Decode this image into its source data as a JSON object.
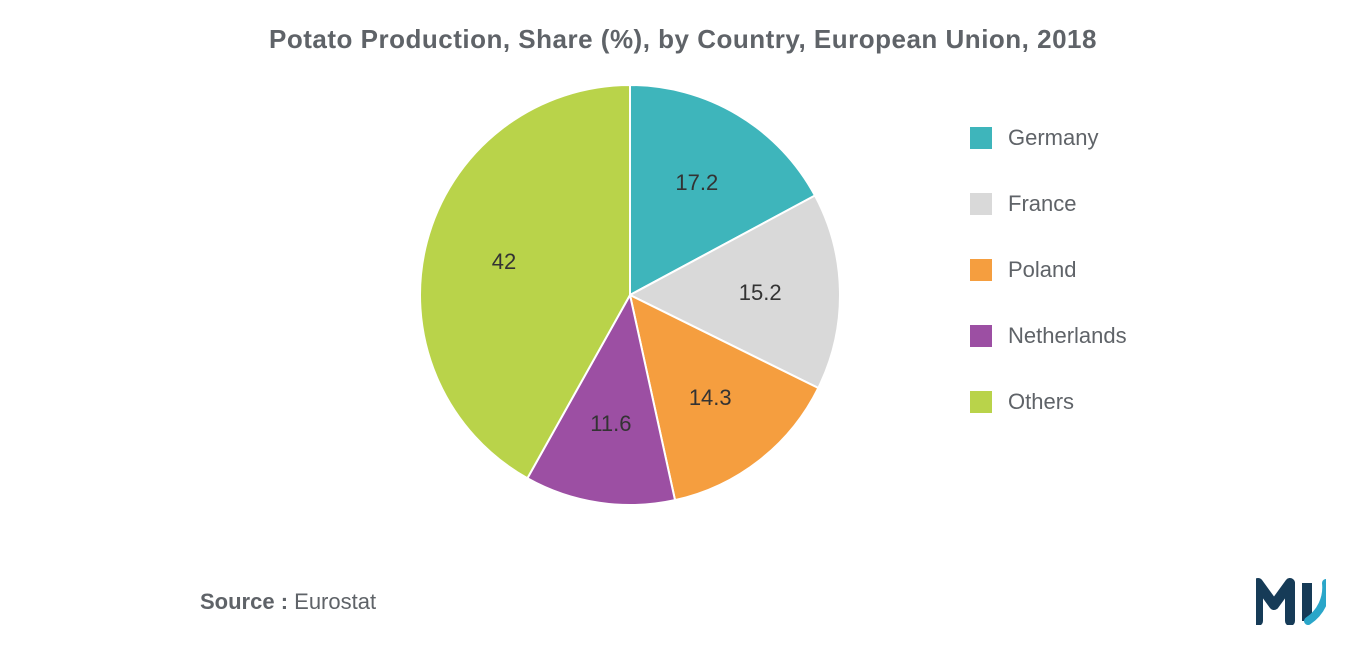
{
  "chart": {
    "type": "pie",
    "title": "Potato Production, Share (%), by Country, European Union, 2018",
    "title_fontsize": 26,
    "title_color": "#5f6368",
    "background_color": "#ffffff",
    "slices": [
      {
        "label": "Germany",
        "value": 17.2,
        "color": "#3eb5bb"
      },
      {
        "label": "France",
        "value": 15.2,
        "color": "#d9d9d9"
      },
      {
        "label": "Poland",
        "value": 14.3,
        "color": "#f59e3f"
      },
      {
        "label": "Netherlands",
        "value": 11.6,
        "color": "#9c4fa3"
      },
      {
        "label": "Others",
        "value": 42,
        "color": "#b9d34a"
      }
    ],
    "data_label_fontsize": 22,
    "data_label_color": "#333333",
    "legend_fontsize": 22,
    "legend_color": "#5f6368",
    "legend_swatch_size": 22,
    "pie_radius": 210,
    "label_radius_factor": 0.62
  },
  "source": {
    "label": "Source :",
    "value": " Eurostat"
  },
  "logo": {
    "name": "mi-logo",
    "colors": {
      "primary": "#163b57",
      "accent": "#2aa6c9"
    }
  }
}
